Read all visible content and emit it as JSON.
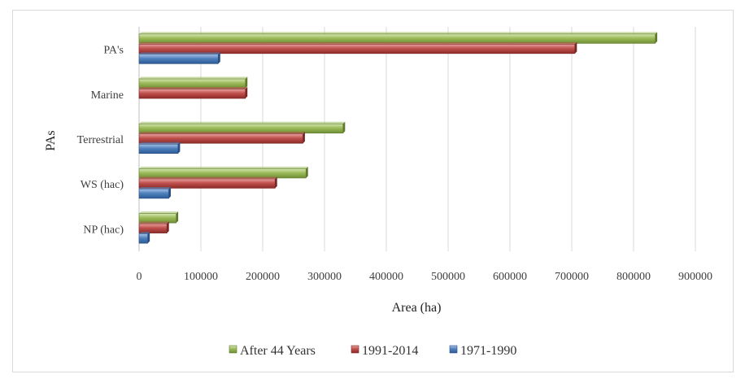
{
  "chart_data": {
    "type": "bar",
    "orientation": "horizontal",
    "categories": [
      "PA's",
      "Marine",
      "Terrestrial",
      "WS (hac)",
      "NP (hac)"
    ],
    "series": [
      {
        "name": "After 44 Years",
        "color": "#9bbb59",
        "values": [
          835000,
          172000,
          330000,
          270000,
          60000
        ]
      },
      {
        "name": "1991-2014",
        "color": "#c0504d",
        "values": [
          705000,
          172000,
          265000,
          220000,
          45000
        ]
      },
      {
        "name": "1971-1990",
        "color": "#4f81bd",
        "values": [
          128000,
          null,
          63000,
          48000,
          14000
        ]
      }
    ],
    "xlim": [
      0,
      900000
    ],
    "xticks": [
      0,
      100000,
      200000,
      300000,
      400000,
      500000,
      600000,
      700000,
      800000,
      900000
    ],
    "xlabel": "Area (ha)",
    "ylabel": "PAs",
    "grid": "vertical",
    "legend": "bottom"
  }
}
